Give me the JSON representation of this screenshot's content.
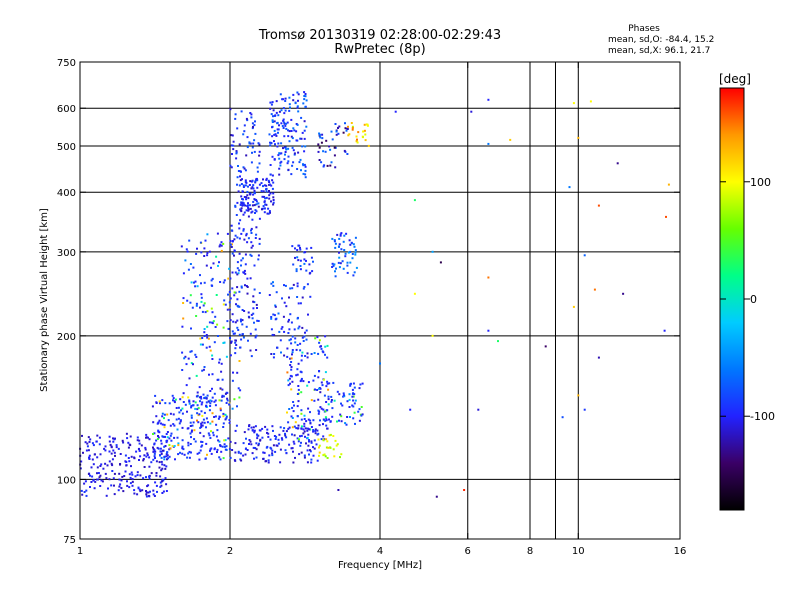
{
  "header": {
    "title_line1": "Tromsø 20130319 02:28:00-02:29:43",
    "title_line2": "RwPretec (8p)"
  },
  "stats": {
    "heading": "Phases",
    "line_o": "mean, sd,O: -84.4, 15.2",
    "line_x": "mean, sd,X:  96.1, 21.7"
  },
  "chart_data": {
    "type": "scatter",
    "title": "Tromsø 20130319 02:28:00-02:29:43",
    "subtitle": "RwPretec (8p)",
    "xlabel": "Frequency [MHz]",
    "ylabel": "Stationary phase Virtual Height [km]",
    "x_scale": "log",
    "y_scale": "log",
    "xlim": [
      1,
      16
    ],
    "ylim": [
      75,
      750
    ],
    "xticks": [
      1,
      2,
      4,
      6,
      8,
      10,
      16
    ],
    "xtick_labels": [
      "1",
      "2",
      "4",
      "6",
      "8",
      "10",
      "16"
    ],
    "xgrid": [
      2,
      4,
      6,
      8,
      10
    ],
    "xminor": [
      9
    ],
    "yticks": [
      75,
      100,
      200,
      300,
      400,
      500,
      600,
      750
    ],
    "ytick_labels": [
      "75",
      "100",
      "200",
      "300",
      "400",
      "500",
      "600",
      "750"
    ],
    "ygrid": [
      100,
      200,
      300,
      400,
      500,
      600
    ],
    "grid": true,
    "colorbar": {
      "label": "[deg]",
      "range": [
        -180,
        180
      ],
      "ticks": [
        100,
        0,
        -100
      ],
      "tick_labels": [
        "100",
        "0",
        "-100"
      ],
      "colors": [
        "#000000",
        "#3a0066",
        "#2222ff",
        "#0077ff",
        "#00ccff",
        "#00ff88",
        "#66ff00",
        "#ffff00",
        "#ff9900",
        "#ff0000"
      ]
    },
    "clusters": [
      {
        "f": [
          1.0,
          1.5
        ],
        "h": [
          92,
          125
        ],
        "phase": [
          -120,
          -90
        ],
        "n": 260
      },
      {
        "f": [
          1.4,
          2.0
        ],
        "h": [
          110,
          150
        ],
        "phase": [
          -115,
          150
        ],
        "n": 260
      },
      {
        "f": [
          2.0,
          3.0
        ],
        "h": [
          108,
          130
        ],
        "phase": [
          -120,
          -80
        ],
        "n": 160
      },
      {
        "f": [
          1.6,
          2.1
        ],
        "h": [
          140,
          330
        ],
        "phase": [
          -120,
          140
        ],
        "n": 200
      },
      {
        "f": [
          2.0,
          2.3
        ],
        "h": [
          180,
          600
        ],
        "phase": [
          -120,
          -70
        ],
        "n": 220
      },
      {
        "f": [
          2.1,
          2.45
        ],
        "h": [
          360,
          430
        ],
        "phase": [
          -120,
          -80
        ],
        "n": 110
      },
      {
        "f": [
          2.4,
          2.85
        ],
        "h": [
          430,
          650
        ],
        "phase": [
          -115,
          -60
        ],
        "n": 160
      },
      {
        "f": [
          2.6,
          3.15
        ],
        "h": [
          120,
          200
        ],
        "phase": [
          -120,
          150
        ],
        "n": 140
      },
      {
        "f": [
          2.4,
          2.9
        ],
        "h": [
          180,
          260
        ],
        "phase": [
          -120,
          -60
        ],
        "n": 80
      },
      {
        "f": [
          2.65,
          2.95
        ],
        "h": [
          270,
          310
        ],
        "phase": [
          -110,
          -60
        ],
        "n": 30
      },
      {
        "f": [
          3.0,
          3.7
        ],
        "h": [
          130,
          160
        ],
        "phase": [
          -120,
          60
        ],
        "n": 80
      },
      {
        "f": [
          3.2,
          3.6
        ],
        "h": [
          265,
          330
        ],
        "phase": [
          -110,
          -40
        ],
        "n": 55
      },
      {
        "f": [
          3.0,
          3.45
        ],
        "h": [
          450,
          560
        ],
        "phase": [
          -150,
          -60
        ],
        "n": 45
      },
      {
        "f": [
          3.45,
          3.8
        ],
        "h": [
          500,
          560
        ],
        "phase": [
          80,
          150
        ],
        "n": 25
      },
      {
        "f": [
          3.0,
          3.35
        ],
        "h": [
          110,
          125
        ],
        "phase": [
          60,
          120
        ],
        "n": 25
      }
    ],
    "points": [
      {
        "x": 4.3,
        "y": 590,
        "phase": -100
      },
      {
        "x": 6.6,
        "y": 625,
        "phase": -100
      },
      {
        "x": 6.1,
        "y": 590,
        "phase": -110
      },
      {
        "x": 7.3,
        "y": 515,
        "phase": 120
      },
      {
        "x": 6.6,
        "y": 505,
        "phase": -60
      },
      {
        "x": 9.8,
        "y": 615,
        "phase": 100
      },
      {
        "x": 10.6,
        "y": 620,
        "phase": 100
      },
      {
        "x": 10.0,
        "y": 520,
        "phase": 130
      },
      {
        "x": 12.0,
        "y": 460,
        "phase": -130
      },
      {
        "x": 11.0,
        "y": 375,
        "phase": 160
      },
      {
        "x": 15.2,
        "y": 415,
        "phase": 130
      },
      {
        "x": 15.0,
        "y": 355,
        "phase": 160
      },
      {
        "x": 4.7,
        "y": 385,
        "phase": 30
      },
      {
        "x": 5.1,
        "y": 300,
        "phase": -40
      },
      {
        "x": 5.3,
        "y": 285,
        "phase": -150
      },
      {
        "x": 4.7,
        "y": 245,
        "phase": 100
      },
      {
        "x": 6.6,
        "y": 265,
        "phase": 150
      },
      {
        "x": 6.6,
        "y": 205,
        "phase": -100
      },
      {
        "x": 9.6,
        "y": 410,
        "phase": -60
      },
      {
        "x": 10.3,
        "y": 295,
        "phase": -70
      },
      {
        "x": 9.8,
        "y": 230,
        "phase": 120
      },
      {
        "x": 10.8,
        "y": 250,
        "phase": 150
      },
      {
        "x": 12.3,
        "y": 245,
        "phase": -130
      },
      {
        "x": 8.6,
        "y": 190,
        "phase": -140
      },
      {
        "x": 11.0,
        "y": 180,
        "phase": -120
      },
      {
        "x": 14.9,
        "y": 205,
        "phase": -100
      },
      {
        "x": 4.0,
        "y": 175,
        "phase": -60
      },
      {
        "x": 4.6,
        "y": 140,
        "phase": -100
      },
      {
        "x": 6.3,
        "y": 140,
        "phase": -110
      },
      {
        "x": 10.0,
        "y": 150,
        "phase": 130
      },
      {
        "x": 10.3,
        "y": 140,
        "phase": -90
      },
      {
        "x": 5.1,
        "y": 200,
        "phase": 100
      },
      {
        "x": 3.3,
        "y": 95,
        "phase": -120
      },
      {
        "x": 5.2,
        "y": 92,
        "phase": -130
      },
      {
        "x": 5.9,
        "y": 95,
        "phase": 170
      },
      {
        "x": 9.3,
        "y": 135,
        "phase": -80
      },
      {
        "x": 6.9,
        "y": 195,
        "phase": 30
      }
    ]
  }
}
